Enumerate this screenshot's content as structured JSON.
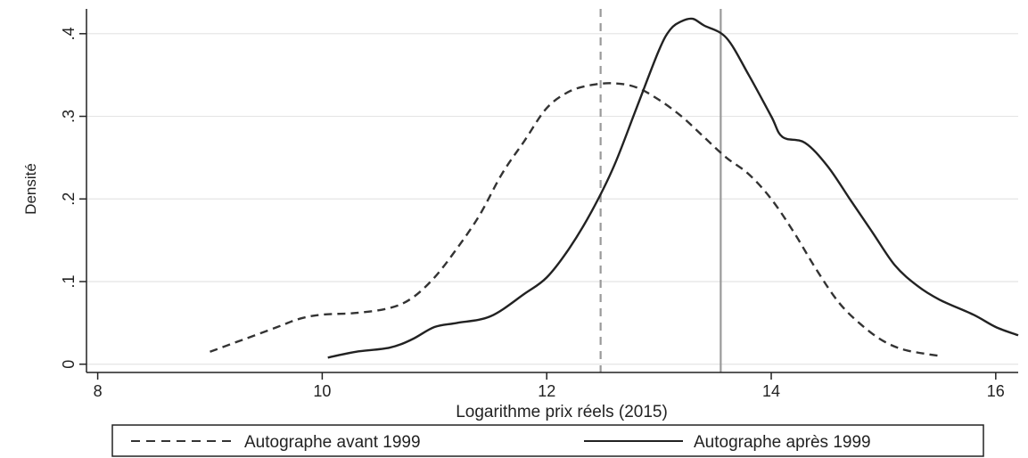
{
  "chart_data": {
    "type": "line",
    "title": "",
    "xlabel": "Logarithme prix réels (2015)",
    "ylabel": "Densité",
    "xlim": [
      7.9,
      16.2
    ],
    "ylim": [
      -0.01,
      0.43
    ],
    "xticks": [
      8,
      10,
      12,
      14,
      16
    ],
    "xtick_labels": [
      "8",
      "10",
      "12",
      "14",
      "16"
    ],
    "yticks": [
      0,
      0.1,
      0.2,
      0.3,
      0.4
    ],
    "ytick_labels": [
      "0",
      ".1",
      ".2",
      ".3",
      ".4"
    ],
    "grid": true,
    "legend_position": "bottom",
    "reference_lines": [
      {
        "x": 12.48,
        "style": "dashed"
      },
      {
        "x": 13.55,
        "style": "solid"
      }
    ],
    "series": [
      {
        "name": "Autographe avant 1999",
        "style": "dashed",
        "color": "#333333",
        "x": [
          9.0,
          9.3,
          9.6,
          9.8,
          10.0,
          10.3,
          10.6,
          10.8,
          11.0,
          11.2,
          11.4,
          11.6,
          11.8,
          12.0,
          12.2,
          12.4,
          12.6,
          12.8,
          13.0,
          13.2,
          13.4,
          13.6,
          13.8,
          14.0,
          14.2,
          14.4,
          14.6,
          14.8,
          15.0,
          15.2,
          15.5
        ],
        "y": [
          0.015,
          0.03,
          0.045,
          0.055,
          0.06,
          0.062,
          0.068,
          0.08,
          0.105,
          0.14,
          0.18,
          0.23,
          0.27,
          0.31,
          0.33,
          0.338,
          0.34,
          0.335,
          0.32,
          0.3,
          0.275,
          0.25,
          0.23,
          0.2,
          0.16,
          0.115,
          0.075,
          0.048,
          0.028,
          0.017,
          0.01
        ]
      },
      {
        "name": "Autographe après 1999",
        "style": "solid",
        "color": "#222222",
        "x": [
          10.05,
          10.3,
          10.6,
          10.8,
          11.0,
          11.2,
          11.5,
          11.8,
          12.0,
          12.2,
          12.4,
          12.6,
          12.8,
          13.0,
          13.1,
          13.2,
          13.3,
          13.4,
          13.6,
          13.8,
          14.0,
          14.1,
          14.3,
          14.5,
          14.7,
          14.9,
          15.1,
          15.3,
          15.5,
          15.8,
          16.0,
          16.2
        ],
        "y": [
          0.008,
          0.015,
          0.02,
          0.03,
          0.045,
          0.05,
          0.058,
          0.085,
          0.105,
          0.14,
          0.185,
          0.24,
          0.31,
          0.38,
          0.405,
          0.415,
          0.418,
          0.41,
          0.395,
          0.35,
          0.3,
          0.275,
          0.268,
          0.24,
          0.2,
          0.16,
          0.12,
          0.095,
          0.078,
          0.06,
          0.045,
          0.035
        ]
      }
    ]
  }
}
